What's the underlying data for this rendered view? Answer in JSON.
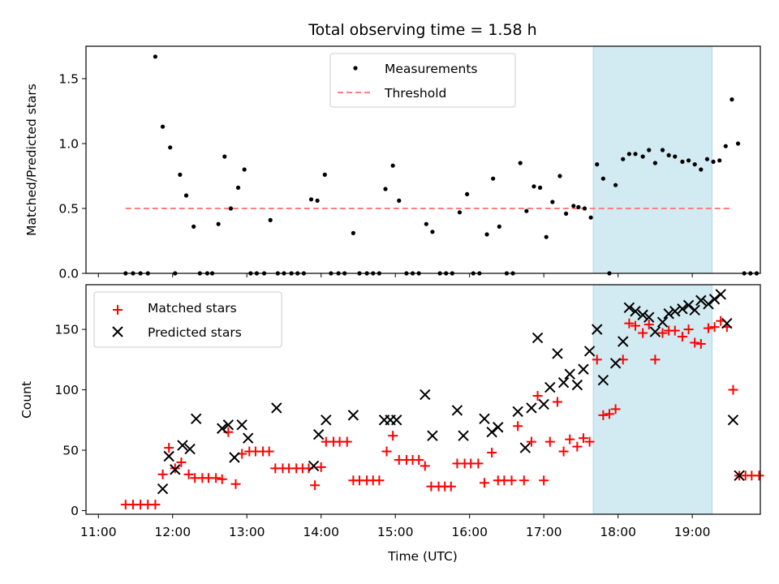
{
  "chart_data": [
    {
      "type": "scatter",
      "title": "Total observing time = 1.58 h",
      "xlabel": "",
      "ylabel": "Matched/Predicted stars",
      "xlim": [
        "10:50",
        "19:55"
      ],
      "ylim": [
        0,
        1.75
      ],
      "yticks": [
        "0.0",
        "0.5",
        "1.0",
        "1.5"
      ],
      "grid": false,
      "legend": "upper center",
      "shaded_interval": {
        "start": "17:40",
        "end": "19:16",
        "color": "#add8e6"
      },
      "threshold": {
        "name": "Threshold",
        "value": 0.5,
        "x_start": "11:22",
        "x_end": "19:31",
        "color": "#ff7f7f",
        "style": "dashed"
      },
      "series": [
        {
          "name": "Measurements",
          "marker": "dot",
          "color": "#000000",
          "points": [
            [
              "11:22",
              0.0
            ],
            [
              "11:28",
              0.0
            ],
            [
              "11:34",
              0.0
            ],
            [
              "11:40",
              0.0
            ],
            [
              "11:46",
              1.67
            ],
            [
              "11:52",
              1.13
            ],
            [
              "11:58",
              0.97
            ],
            [
              "12:02",
              0.0
            ],
            [
              "12:06",
              0.76
            ],
            [
              "12:11",
              0.6
            ],
            [
              "12:17",
              0.36
            ],
            [
              "12:22",
              0.0
            ],
            [
              "12:28",
              0.0
            ],
            [
              "12:32",
              0.0
            ],
            [
              "12:37",
              0.38
            ],
            [
              "12:42",
              0.9
            ],
            [
              "12:47",
              0.5
            ],
            [
              "12:53",
              0.66
            ],
            [
              "12:58",
              0.8
            ],
            [
              "13:03",
              0.0
            ],
            [
              "13:08",
              0.0
            ],
            [
              "13:14",
              0.0
            ],
            [
              "13:19",
              0.41
            ],
            [
              "13:25",
              0.0
            ],
            [
              "13:30",
              0.0
            ],
            [
              "13:36",
              0.0
            ],
            [
              "13:41",
              0.0
            ],
            [
              "13:46",
              0.0
            ],
            [
              "13:52",
              0.57
            ],
            [
              "13:57",
              0.56
            ],
            [
              "14:03",
              0.76
            ],
            [
              "14:08",
              0.0
            ],
            [
              "14:14",
              0.0
            ],
            [
              "14:19",
              0.0
            ],
            [
              "14:26",
              0.31
            ],
            [
              "14:31",
              0.0
            ],
            [
              "14:37",
              0.0
            ],
            [
              "14:42",
              0.0
            ],
            [
              "14:47",
              0.0
            ],
            [
              "14:52",
              0.65
            ],
            [
              "14:58",
              0.83
            ],
            [
              "15:03",
              0.56
            ],
            [
              "15:09",
              0.0
            ],
            [
              "15:14",
              0.0
            ],
            [
              "15:19",
              0.0
            ],
            [
              "15:25",
              0.38
            ],
            [
              "15:30",
              0.32
            ],
            [
              "15:36",
              0.0
            ],
            [
              "15:41",
              0.0
            ],
            [
              "15:46",
              0.0
            ],
            [
              "15:52",
              0.47
            ],
            [
              "15:58",
              0.61
            ],
            [
              "16:03",
              0.0
            ],
            [
              "16:08",
              0.0
            ],
            [
              "16:14",
              0.3
            ],
            [
              "16:19",
              0.73
            ],
            [
              "16:24",
              0.36
            ],
            [
              "16:30",
              0.0
            ],
            [
              "16:35",
              0.0
            ],
            [
              "16:41",
              0.85
            ],
            [
              "16:46",
              0.48
            ],
            [
              "16:52",
              0.67
            ],
            [
              "16:57",
              0.66
            ],
            [
              "17:02",
              0.28
            ],
            [
              "17:07",
              0.55
            ],
            [
              "17:13",
              0.75
            ],
            [
              "17:18",
              0.46
            ],
            [
              "17:24",
              0.52
            ],
            [
              "17:28",
              0.51
            ],
            [
              "17:33",
              0.5
            ],
            [
              "17:38",
              0.43
            ],
            [
              "17:43",
              0.84
            ],
            [
              "17:48",
              0.73
            ],
            [
              "17:53",
              0.0
            ],
            [
              "17:58",
              0.68
            ],
            [
              "18:04",
              0.88
            ],
            [
              "18:09",
              0.92
            ],
            [
              "18:14",
              0.92
            ],
            [
              "18:20",
              0.9
            ],
            [
              "18:25",
              0.95
            ],
            [
              "18:30",
              0.85
            ],
            [
              "18:36",
              0.95
            ],
            [
              "18:41",
              0.91
            ],
            [
              "18:46",
              0.9
            ],
            [
              "18:52",
              0.86
            ],
            [
              "18:57",
              0.87
            ],
            [
              "19:02",
              0.84
            ],
            [
              "19:07",
              0.8
            ],
            [
              "19:12",
              0.88
            ],
            [
              "19:17",
              0.86
            ],
            [
              "19:22",
              0.87
            ],
            [
              "19:27",
              0.98
            ],
            [
              "19:32",
              1.34
            ],
            [
              "19:37",
              1.0
            ],
            [
              "19:42",
              0.0
            ],
            [
              "19:47",
              0.0
            ],
            [
              "19:52",
              0.0
            ]
          ]
        }
      ]
    },
    {
      "type": "scatter",
      "title": "",
      "xlabel": "Time (UTC)",
      "ylabel": "Count",
      "xlim": [
        "10:50",
        "19:55"
      ],
      "ylim": [
        -3,
        187
      ],
      "xticks": [
        "11:00",
        "12:00",
        "13:00",
        "14:00",
        "15:00",
        "16:00",
        "17:00",
        "18:00",
        "19:00"
      ],
      "yticks": [
        "0",
        "50",
        "100",
        "150"
      ],
      "grid": false,
      "legend": "upper left",
      "shaded_interval": {
        "start": "17:40",
        "end": "19:16",
        "color": "#add8e6"
      },
      "series": [
        {
          "name": "Matched stars",
          "marker": "plus",
          "color": "#ff0000",
          "points": [
            [
              "11:22",
              5
            ],
            [
              "11:28",
              5
            ],
            [
              "11:34",
              5
            ],
            [
              "11:40",
              5
            ],
            [
              "11:46",
              5
            ],
            [
              "11:52",
              30
            ],
            [
              "11:57",
              52
            ],
            [
              "12:02",
              35
            ],
            [
              "12:07",
              40
            ],
            [
              "12:13",
              30
            ],
            [
              "12:18",
              27
            ],
            [
              "12:24",
              27
            ],
            [
              "12:29",
              27
            ],
            [
              "12:35",
              27
            ],
            [
              "12:40",
              26
            ],
            [
              "12:45",
              65
            ],
            [
              "12:51",
              22
            ],
            [
              "12:56",
              47
            ],
            [
              "13:02",
              49
            ],
            [
              "13:07",
              49
            ],
            [
              "13:13",
              49
            ],
            [
              "13:18",
              49
            ],
            [
              "13:23",
              35
            ],
            [
              "13:29",
              35
            ],
            [
              "13:34",
              35
            ],
            [
              "13:40",
              35
            ],
            [
              "13:45",
              35
            ],
            [
              "13:50",
              35
            ],
            [
              "13:55",
              21
            ],
            [
              "14:00",
              36
            ],
            [
              "14:04",
              57
            ],
            [
              "14:10",
              57
            ],
            [
              "14:15",
              57
            ],
            [
              "14:21",
              57
            ],
            [
              "14:26",
              25
            ],
            [
              "14:31",
              25
            ],
            [
              "14:37",
              25
            ],
            [
              "14:42",
              25
            ],
            [
              "14:47",
              25
            ],
            [
              "14:53",
              49
            ],
            [
              "14:58",
              62
            ],
            [
              "15:03",
              42
            ],
            [
              "15:09",
              42
            ],
            [
              "15:14",
              42
            ],
            [
              "15:19",
              42
            ],
            [
              "15:24",
              37
            ],
            [
              "15:29",
              20
            ],
            [
              "15:35",
              20
            ],
            [
              "15:40",
              20
            ],
            [
              "15:45",
              20
            ],
            [
              "15:50",
              39
            ],
            [
              "15:56",
              39
            ],
            [
              "16:01",
              39
            ],
            [
              "16:07",
              39
            ],
            [
              "16:12",
              23
            ],
            [
              "16:18",
              48
            ],
            [
              "16:23",
              25
            ],
            [
              "16:28",
              25
            ],
            [
              "16:34",
              25
            ],
            [
              "16:39",
              70
            ],
            [
              "16:44",
              25
            ],
            [
              "16:50",
              57
            ],
            [
              "16:55",
              95
            ],
            [
              "17:00",
              25
            ],
            [
              "17:05",
              57
            ],
            [
              "17:11",
              90
            ],
            [
              "17:16",
              49
            ],
            [
              "17:21",
              59
            ],
            [
              "17:27",
              53
            ],
            [
              "17:32",
              60
            ],
            [
              "17:37",
              57
            ],
            [
              "17:43",
              125
            ],
            [
              "17:48",
              79
            ],
            [
              "17:53",
              80
            ],
            [
              "17:58",
              84
            ],
            [
              "18:04",
              125
            ],
            [
              "18:09",
              155
            ],
            [
              "18:14",
              153
            ],
            [
              "18:20",
              147
            ],
            [
              "18:25",
              154
            ],
            [
              "18:30",
              125
            ],
            [
              "18:36",
              147
            ],
            [
              "18:41",
              149
            ],
            [
              "18:46",
              149
            ],
            [
              "18:52",
              144
            ],
            [
              "18:57",
              150
            ],
            [
              "19:02",
              139
            ],
            [
              "19:07",
              138
            ],
            [
              "19:13",
              151
            ],
            [
              "19:18",
              152
            ],
            [
              "19:23",
              157
            ],
            [
              "19:28",
              152
            ],
            [
              "19:33",
              100
            ],
            [
              "19:38",
              29
            ],
            [
              "19:43",
              29
            ],
            [
              "19:48",
              29
            ],
            [
              "19:54",
              29
            ]
          ]
        },
        {
          "name": "Predicted stars",
          "marker": "x",
          "color": "#000000",
          "points": [
            [
              "11:52",
              18
            ],
            [
              "11:57",
              45
            ],
            [
              "12:02",
              34
            ],
            [
              "12:08",
              54
            ],
            [
              "12:14",
              51
            ],
            [
              "12:19",
              76
            ],
            [
              "12:40",
              68
            ],
            [
              "12:45",
              71
            ],
            [
              "12:50",
              44
            ],
            [
              "12:56",
              71
            ],
            [
              "13:01",
              60
            ],
            [
              "13:24",
              85
            ],
            [
              "13:54",
              37
            ],
            [
              "13:58",
              63
            ],
            [
              "14:04",
              75
            ],
            [
              "14:26",
              79
            ],
            [
              "14:51",
              75
            ],
            [
              "14:56",
              75
            ],
            [
              "15:01",
              75
            ],
            [
              "15:24",
              96
            ],
            [
              "15:30",
              62
            ],
            [
              "15:50",
              83
            ],
            [
              "15:55",
              62
            ],
            [
              "16:12",
              76
            ],
            [
              "16:18",
              65
            ],
            [
              "16:23",
              69
            ],
            [
              "16:39",
              82
            ],
            [
              "16:45",
              52
            ],
            [
              "16:50",
              85
            ],
            [
              "16:55",
              143
            ],
            [
              "17:00",
              88
            ],
            [
              "17:05",
              102
            ],
            [
              "17:11",
              130
            ],
            [
              "17:16",
              106
            ],
            [
              "17:21",
              113
            ],
            [
              "17:27",
              104
            ],
            [
              "17:32",
              117
            ],
            [
              "17:37",
              132
            ],
            [
              "17:43",
              150
            ],
            [
              "17:48",
              108
            ],
            [
              "17:58",
              122
            ],
            [
              "18:04",
              140
            ],
            [
              "18:09",
              168
            ],
            [
              "18:14",
              165
            ],
            [
              "18:20",
              162
            ],
            [
              "18:25",
              160
            ],
            [
              "18:30",
              148
            ],
            [
              "18:36",
              156
            ],
            [
              "18:41",
              163
            ],
            [
              "18:46",
              165
            ],
            [
              "18:52",
              167
            ],
            [
              "18:57",
              170
            ],
            [
              "19:02",
              166
            ],
            [
              "19:07",
              174
            ],
            [
              "19:13",
              171
            ],
            [
              "19:18",
              175
            ],
            [
              "19:23",
              179
            ],
            [
              "19:28",
              155
            ],
            [
              "19:33",
              75
            ],
            [
              "19:38",
              29
            ]
          ]
        }
      ]
    }
  ]
}
